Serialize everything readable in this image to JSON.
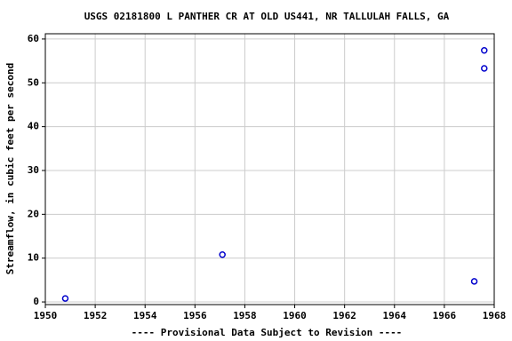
{
  "chart_data": {
    "type": "scatter",
    "title": "USGS 02181800 L PANTHER CR AT OLD US441, NR TALLULAH FALLS, GA",
    "y_label": "Streamflow, in cubic feet per second",
    "footnote": "---- Provisional Data Subject to Revision ----",
    "footnote_color": "#cc0000",
    "x": [
      1950.8,
      1957.1,
      1967.2,
      1967.6,
      1967.6
    ],
    "values": [
      0.8,
      10.8,
      4.7,
      57.4,
      53.3
    ],
    "color": "#0000cc",
    "xlim": [
      1950,
      1968
    ],
    "xticks": [
      1950,
      1952,
      1954,
      1956,
      1958,
      1960,
      1962,
      1964,
      1966,
      1968
    ],
    "ylim": [
      -0.6,
      61.2
    ],
    "yticks": [
      0,
      10,
      20,
      30,
      40,
      50,
      60
    ],
    "grid": true
  }
}
